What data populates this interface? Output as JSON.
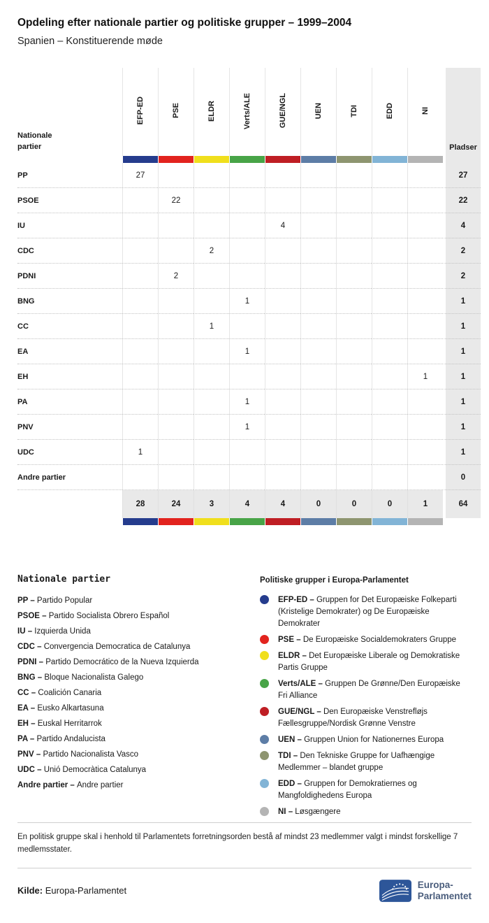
{
  "chart_data": {
    "type": "table",
    "title": "Opdeling efter nationale partier og politiske grupper – 1999–2004",
    "subtitle": "Spanien – Konstituerende møde",
    "row_header_label": "Nationale partier",
    "seats_label": "Pladser",
    "groups": [
      {
        "id": "EFP-ED",
        "color": "#253c8d"
      },
      {
        "id": "PSE",
        "color": "#e2231e"
      },
      {
        "id": "ELDR",
        "color": "#f0df1c"
      },
      {
        "id": "Verts/ALE",
        "color": "#48a447"
      },
      {
        "id": "GUE/NGL",
        "color": "#bf1e24"
      },
      {
        "id": "UEN",
        "color": "#5d7da6"
      },
      {
        "id": "TDI",
        "color": "#8e9570"
      },
      {
        "id": "EDD",
        "color": "#82b4d6"
      },
      {
        "id": "NI",
        "color": "#b4b4b4"
      }
    ],
    "rows": [
      {
        "party": "PP",
        "values": [
          "27",
          "",
          "",
          "",
          "",
          "",
          "",
          "",
          ""
        ],
        "seats": "27"
      },
      {
        "party": "PSOE",
        "values": [
          "",
          "22",
          "",
          "",
          "",
          "",
          "",
          "",
          ""
        ],
        "seats": "22"
      },
      {
        "party": "IU",
        "values": [
          "",
          "",
          "",
          "",
          "4",
          "",
          "",
          "",
          ""
        ],
        "seats": "4"
      },
      {
        "party": "CDC",
        "values": [
          "",
          "",
          "2",
          "",
          "",
          "",
          "",
          "",
          ""
        ],
        "seats": "2"
      },
      {
        "party": "PDNI",
        "values": [
          "",
          "2",
          "",
          "",
          "",
          "",
          "",
          "",
          ""
        ],
        "seats": "2"
      },
      {
        "party": "BNG",
        "values": [
          "",
          "",
          "",
          "1",
          "",
          "",
          "",
          "",
          ""
        ],
        "seats": "1"
      },
      {
        "party": "CC",
        "values": [
          "",
          "",
          "1",
          "",
          "",
          "",
          "",
          "",
          ""
        ],
        "seats": "1"
      },
      {
        "party": "EA",
        "values": [
          "",
          "",
          "",
          "1",
          "",
          "",
          "",
          "",
          ""
        ],
        "seats": "1"
      },
      {
        "party": "EH",
        "values": [
          "",
          "",
          "",
          "",
          "",
          "",
          "",
          "",
          "1"
        ],
        "seats": "1"
      },
      {
        "party": "PA",
        "values": [
          "",
          "",
          "",
          "1",
          "",
          "",
          "",
          "",
          ""
        ],
        "seats": "1"
      },
      {
        "party": "PNV",
        "values": [
          "",
          "",
          "",
          "1",
          "",
          "",
          "",
          "",
          ""
        ],
        "seats": "1"
      },
      {
        "party": "UDC",
        "values": [
          "1",
          "",
          "",
          "",
          "",
          "",
          "",
          "",
          ""
        ],
        "seats": "1"
      },
      {
        "party": "Andre partier",
        "values": [
          "",
          "",
          "",
          "",
          "",
          "",
          "",
          "",
          ""
        ],
        "seats": "0"
      }
    ],
    "totals": {
      "values": [
        "28",
        "24",
        "3",
        "4",
        "4",
        "0",
        "0",
        "0",
        "1"
      ],
      "seats": "64"
    }
  },
  "legend_parties": {
    "title": "Nationale partier",
    "items": [
      {
        "abbr": "PP",
        "name": "Partido Popular"
      },
      {
        "abbr": "PSOE",
        "name": "Partido Socialista Obrero Español"
      },
      {
        "abbr": "IU",
        "name": "Izquierda Unida"
      },
      {
        "abbr": "CDC",
        "name": "Convergencia Democratica de Catalunya"
      },
      {
        "abbr": "PDNI",
        "name": "Partido Democrático de la Nueva Izquierda"
      },
      {
        "abbr": "BNG",
        "name": "Bloque Nacionalista Galego"
      },
      {
        "abbr": "CC",
        "name": "Coalición Canaria"
      },
      {
        "abbr": "EA",
        "name": "Eusko Alkartasuna"
      },
      {
        "abbr": "EH",
        "name": "Euskal Herritarrok"
      },
      {
        "abbr": "PA",
        "name": "Partido Andalucista"
      },
      {
        "abbr": "PNV",
        "name": "Partido Nacionalista Vasco"
      },
      {
        "abbr": "UDC",
        "name": "Unió Democràtica Catalunya"
      },
      {
        "abbr": "Andre partier",
        "name": "Andre partier"
      }
    ]
  },
  "legend_groups": {
    "title": "Politiske grupper i Europa-Parlamentet",
    "items": [
      {
        "abbr": "EFP-ED",
        "color": "#253c8d",
        "name": "Gruppen for Det Europæiske Folkeparti (Kristelige Demokrater) og De Europæiske Demokrater"
      },
      {
        "abbr": "PSE",
        "color": "#e2231e",
        "name": "De Europæiske Socialdemokraters Gruppe"
      },
      {
        "abbr": "ELDR",
        "color": "#f0df1c",
        "name": "Det Europæiske Liberale og Demokratiske Partis Gruppe"
      },
      {
        "abbr": "Verts/ALE",
        "color": "#48a447",
        "name": "Gruppen De Grønne/Den Europæiske Fri Alliance"
      },
      {
        "abbr": "GUE/NGL",
        "color": "#bf1e24",
        "name": "Den Europæiske Venstrefløjs Fællesgruppe/Nordisk Grønne Venstre"
      },
      {
        "abbr": "UEN",
        "color": "#5d7da6",
        "name": "Gruppen Union for Nationernes Europa"
      },
      {
        "abbr": "TDI",
        "color": "#8e9570",
        "name": "Den Tekniske Gruppe for Uafhængige Medlemmer – blandet gruppe"
      },
      {
        "abbr": "EDD",
        "color": "#82b4d6",
        "name": "Gruppen for Demokratiernes og Mangfoldighedens Europa"
      },
      {
        "abbr": "NI",
        "color": "#b4b4b4",
        "name": "Løsgængere"
      }
    ]
  },
  "footer": {
    "note": "En politisk gruppe skal i henhold til Parlamentets forretningsorden bestå af mindst 23 medlemmer valgt i mindst forskellige 7 medlemsstater.",
    "source_label": "Kilde:",
    "source": "Europa-Parlamentet",
    "logo_line1": "Europa-",
    "logo_line2": "Parlamentet"
  }
}
